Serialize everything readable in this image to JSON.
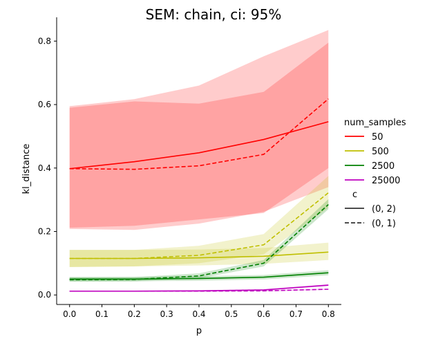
{
  "chart_data": {
    "type": "line",
    "title": "SEM: chain, ci: 95%",
    "xlabel": "p",
    "ylabel": "kl_distance",
    "x": [
      0.0,
      0.2,
      0.4,
      0.6,
      0.8
    ],
    "xlim": [
      -0.04,
      0.84
    ],
    "ylim": [
      -0.03,
      0.875
    ],
    "xticks": [
      "0.0",
      "0.1",
      "0.2",
      "0.3",
      "0.4",
      "0.5",
      "0.6",
      "0.7",
      "0.8"
    ],
    "yticks": [
      "0.0",
      "0.2",
      "0.4",
      "0.6",
      "0.8"
    ],
    "grid": false,
    "legend": {
      "placement": "right",
      "hue_title": "num_samples",
      "hue_items": [
        {
          "label": "50",
          "color": "#ff0000"
        },
        {
          "label": "500",
          "color": "#bfbf00"
        },
        {
          "label": "2500",
          "color": "#008000"
        },
        {
          "label": "25000",
          "color": "#bf00bf"
        }
      ],
      "style_title": "c",
      "style_items": [
        {
          "label": "(0, 2)",
          "dash": "solid"
        },
        {
          "label": "(0, 1)",
          "dash": "dashed"
        }
      ]
    },
    "series": [
      {
        "num_samples": "50",
        "c": "(0, 2)",
        "color": "#ff0000",
        "dash": "solid",
        "values": [
          0.398,
          0.42,
          0.448,
          0.49,
          0.546
        ],
        "ci_low": [
          0.212,
          0.218,
          0.238,
          0.258,
          0.4
        ],
        "ci_high": [
          0.59,
          0.61,
          0.603,
          0.64,
          0.795
        ]
      },
      {
        "num_samples": "50",
        "c": "(0, 1)",
        "color": "#ff0000",
        "dash": "dashed",
        "values": [
          0.398,
          0.396,
          0.407,
          0.443,
          0.618
        ],
        "ci_low": [
          0.208,
          0.205,
          0.225,
          0.262,
          0.34
        ],
        "ci_high": [
          0.595,
          0.617,
          0.66,
          0.752,
          0.835
        ]
      },
      {
        "num_samples": "500",
        "c": "(0, 2)",
        "color": "#bfbf00",
        "dash": "solid",
        "values": [
          0.115,
          0.115,
          0.117,
          0.122,
          0.135
        ],
        "ci_low": [
          0.088,
          0.09,
          0.093,
          0.098,
          0.11
        ],
        "ci_high": [
          0.142,
          0.142,
          0.143,
          0.148,
          0.165
        ]
      },
      {
        "num_samples": "500",
        "c": "(0, 1)",
        "color": "#bfbf00",
        "dash": "dashed",
        "values": [
          0.115,
          0.115,
          0.125,
          0.158,
          0.322
        ],
        "ci_low": [
          0.088,
          0.09,
          0.1,
          0.128,
          0.275
        ],
        "ci_high": [
          0.142,
          0.142,
          0.155,
          0.192,
          0.375
        ]
      },
      {
        "num_samples": "2500",
        "c": "(0, 2)",
        "color": "#008000",
        "dash": "solid",
        "values": [
          0.05,
          0.05,
          0.052,
          0.056,
          0.07
        ],
        "ci_low": [
          0.043,
          0.043,
          0.045,
          0.049,
          0.062
        ],
        "ci_high": [
          0.057,
          0.057,
          0.059,
          0.063,
          0.078
        ]
      },
      {
        "num_samples": "2500",
        "c": "(0, 1)",
        "color": "#008000",
        "dash": "dashed",
        "values": [
          0.048,
          0.049,
          0.06,
          0.1,
          0.285
        ],
        "ci_low": [
          0.042,
          0.043,
          0.053,
          0.09,
          0.27
        ],
        "ci_high": [
          0.055,
          0.056,
          0.068,
          0.11,
          0.302
        ]
      },
      {
        "num_samples": "25000",
        "c": "(0, 2)",
        "color": "#bf00bf",
        "dash": "solid",
        "values": [
          0.012,
          0.012,
          0.013,
          0.016,
          0.031
        ],
        "ci_low": [
          0.01,
          0.01,
          0.011,
          0.014,
          0.028
        ],
        "ci_high": [
          0.014,
          0.014,
          0.015,
          0.018,
          0.034
        ]
      },
      {
        "num_samples": "25000",
        "c": "(0, 1)",
        "color": "#bf00bf",
        "dash": "dashed",
        "values": [
          0.012,
          0.012,
          0.012,
          0.013,
          0.018
        ],
        "ci_low": [
          0.01,
          0.01,
          0.01,
          0.011,
          0.016
        ],
        "ci_high": [
          0.014,
          0.014,
          0.014,
          0.015,
          0.02
        ]
      }
    ]
  }
}
